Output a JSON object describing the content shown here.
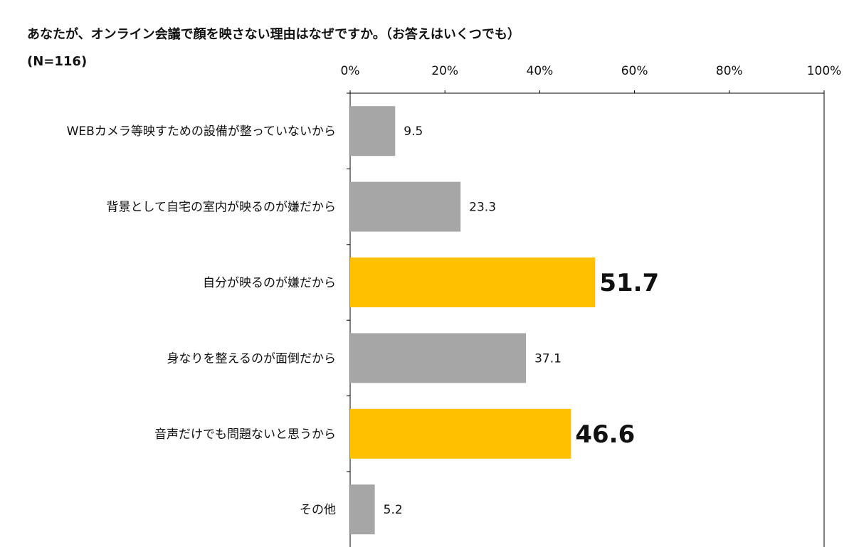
{
  "title": "あなたが、オンライン会議で顔を映さない理由はなぜですか。（お答えはいくつでも）",
  "sample_size": "(N=116)",
  "colors": {
    "normal": "#a6a6a6",
    "highlight": "#ffc000",
    "axis": "#000000"
  },
  "chart_data": {
    "type": "bar",
    "orientation": "horizontal",
    "categories": [
      "WEBカメラ等映すための設備が整っていないから",
      "背景として自宅の室内が映るのが嫌だから",
      "自分が映るのが嫌だから",
      "身なりを整えるのが面倒だから",
      "音声だけでも問題ないと思うから",
      "その他"
    ],
    "values": [
      9.5,
      23.3,
      51.7,
      37.1,
      46.6,
      5.2
    ],
    "value_labels": [
      "9.5",
      "23.3",
      "51.7",
      "37.1",
      "46.6",
      "5.2"
    ],
    "highlighted": [
      false,
      false,
      true,
      false,
      true,
      false
    ],
    "xlim": [
      0,
      100
    ],
    "x_ticks": [
      0,
      20,
      40,
      60,
      80,
      100
    ],
    "x_tick_labels": [
      "0%",
      "20%",
      "40%",
      "60%",
      "80%",
      "100%"
    ],
    "axis_position": "top",
    "grid": false
  }
}
